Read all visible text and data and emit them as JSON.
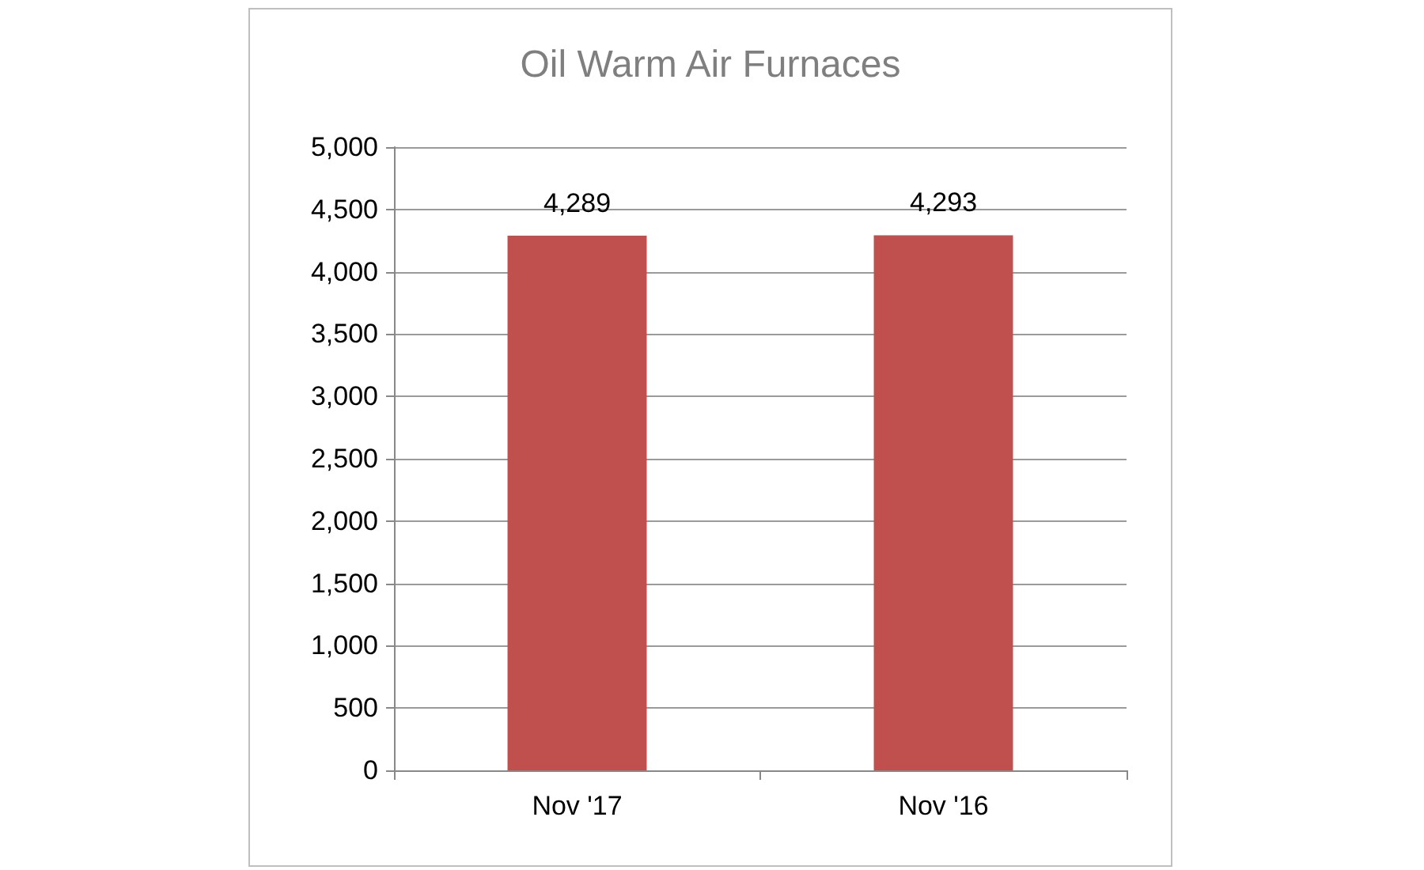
{
  "chart_data": {
    "type": "bar",
    "title": "Oil Warm Air Furnaces",
    "categories": [
      "Nov '17",
      "Nov '16"
    ],
    "values": [
      4289,
      4293
    ],
    "color": "#c0504d",
    "value_labels": [
      "4,289",
      "4,293"
    ],
    "ylim": [
      0,
      5000
    ],
    "yticks": [
      0,
      500,
      {
        "value": 1000,
        "label": "1,000"
      },
      {
        "value": 1500,
        "label": "1,500"
      },
      {
        "value": 2000,
        "label": "2,000"
      },
      {
        "value": 2500,
        "label": "2,500"
      },
      {
        "value": 3000,
        "label": "3,000"
      },
      {
        "value": 3500,
        "label": "3,500"
      },
      {
        "value": 4000,
        "label": "4,000"
      },
      {
        "value": 4500,
        "label": "4,500"
      },
      {
        "value": 5000,
        "label": "5,000"
      }
    ],
    "grid": "y"
  }
}
